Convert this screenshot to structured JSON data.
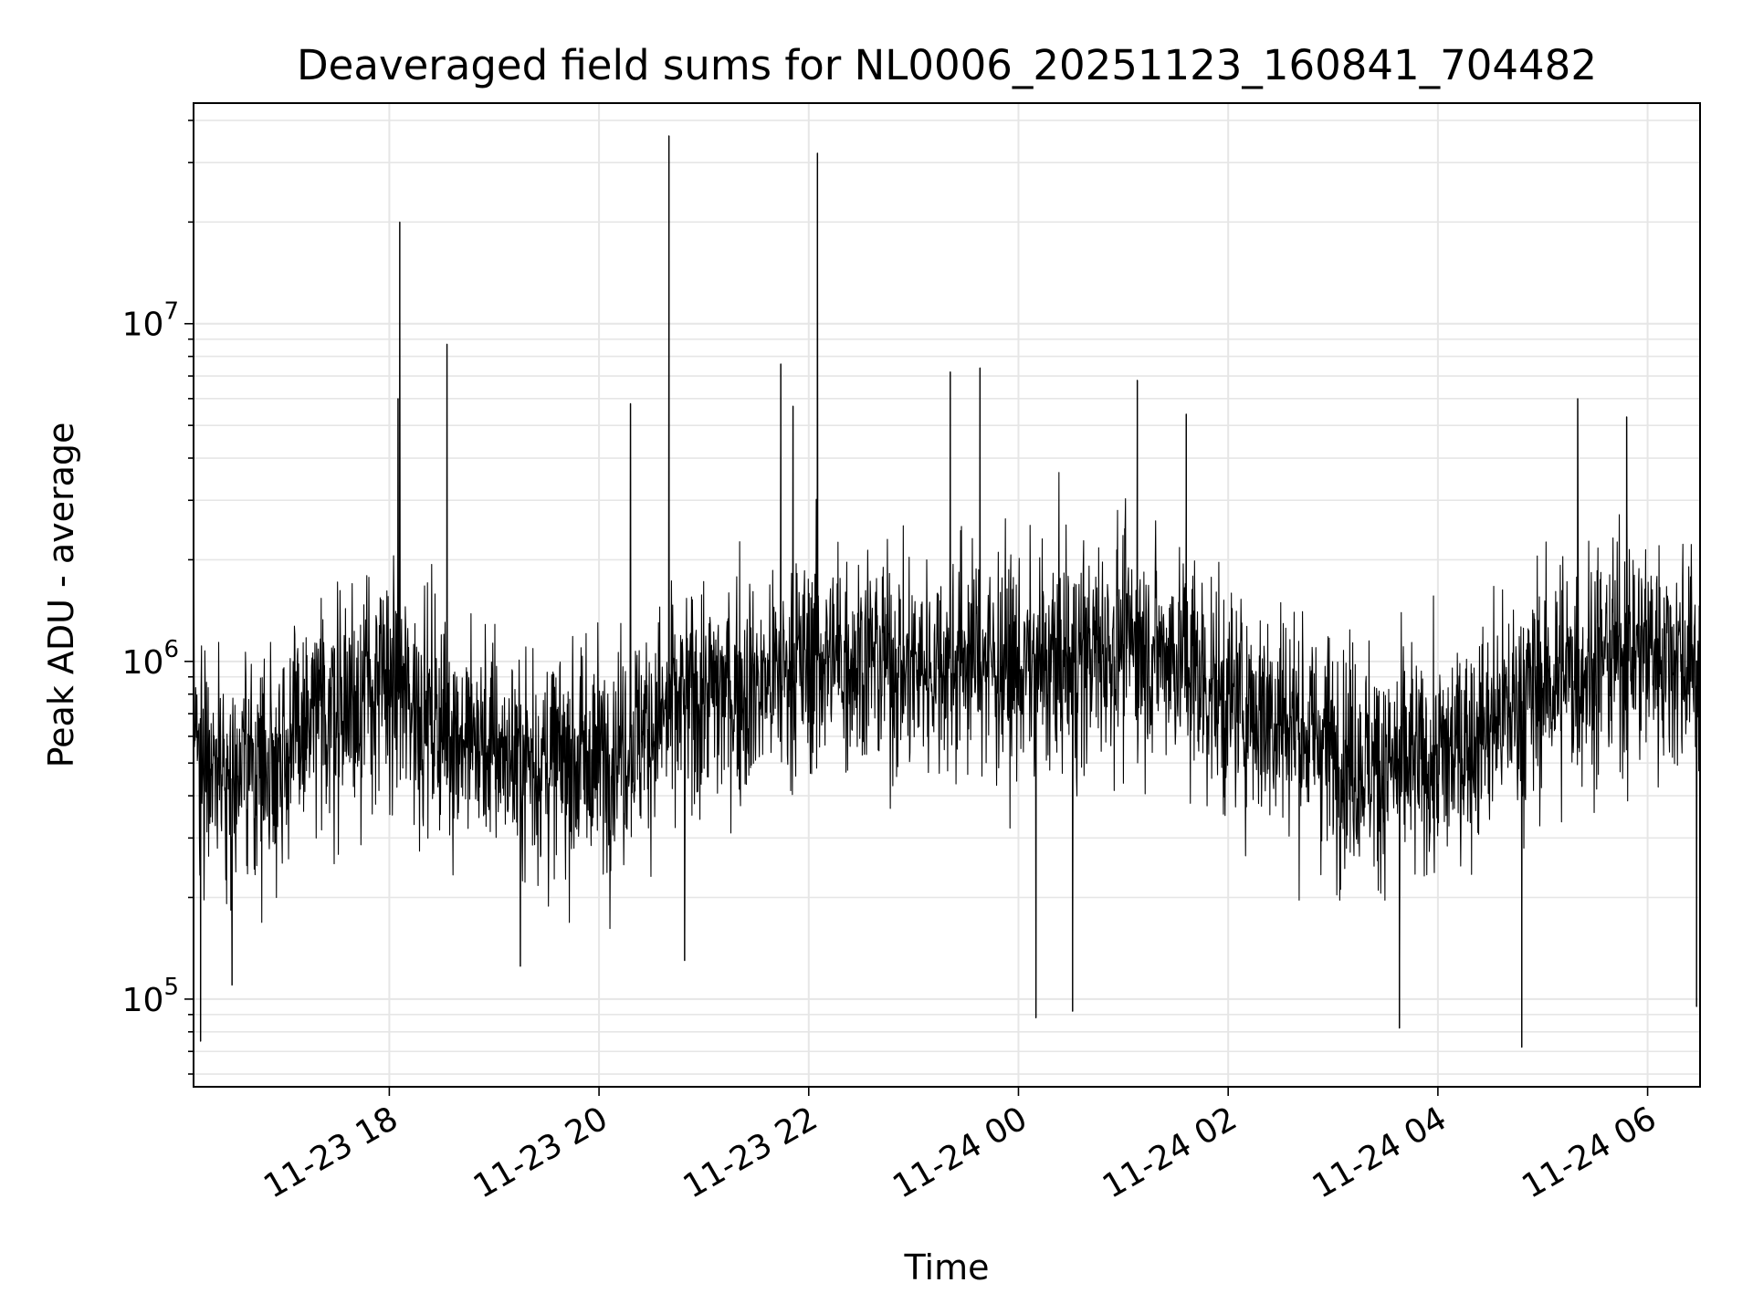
{
  "chart_data": {
    "type": "line",
    "title": "Deaveraged field sums for NL0006_20251123_160841_704482",
    "xlabel": "Time",
    "ylabel": "Peak ADU - average",
    "yscale": "log",
    "xlim": [
      "2025-11-23 16:08",
      "2025-11-24 06:30"
    ],
    "ylim": [
      55000,
      45000000
    ],
    "grid": true,
    "line_color": "#000000",
    "x_ticks": [
      "11-23 18",
      "11-23 20",
      "11-23 22",
      "11-24 00",
      "11-24 02",
      "11-24 04",
      "11-24 06"
    ],
    "y_ticks": [
      {
        "base": "10",
        "exp": "5",
        "value": 100000
      },
      {
        "base": "10",
        "exp": "6",
        "value": 1000000
      },
      {
        "base": "10",
        "exp": "7",
        "value": 10000000
      }
    ],
    "series": [
      {
        "anchors": [
          {
            "x": "2025-11-23 16:08",
            "y": 600000
          },
          {
            "x": "2025-11-23 16:30",
            "y": 450000
          },
          {
            "x": "2025-11-23 17:00",
            "y": 550000
          },
          {
            "x": "2025-11-23 17:30",
            "y": 750000
          },
          {
            "x": "2025-11-23 18:00",
            "y": 850000
          },
          {
            "x": "2025-11-23 18:30",
            "y": 650000
          },
          {
            "x": "2025-11-23 19:00",
            "y": 550000
          },
          {
            "x": "2025-11-23 19:30",
            "y": 500000
          },
          {
            "x": "2025-11-23 20:00",
            "y": 520000
          },
          {
            "x": "2025-11-23 20:30",
            "y": 650000
          },
          {
            "x": "2025-11-23 21:00",
            "y": 800000
          },
          {
            "x": "2025-11-23 21:30",
            "y": 850000
          },
          {
            "x": "2025-11-23 22:00",
            "y": 1000000
          },
          {
            "x": "2025-11-23 22:30",
            "y": 1050000
          },
          {
            "x": "2025-11-23 23:00",
            "y": 950000
          },
          {
            "x": "2025-11-23 23:30",
            "y": 1050000
          },
          {
            "x": "2025-11-24 00:00",
            "y": 950000
          },
          {
            "x": "2025-11-24 00:30",
            "y": 1000000
          },
          {
            "x": "2025-11-24 01:00",
            "y": 1150000
          },
          {
            "x": "2025-11-24 01:30",
            "y": 1050000
          },
          {
            "x": "2025-11-24 02:00",
            "y": 750000
          },
          {
            "x": "2025-11-24 02:30",
            "y": 700000
          },
          {
            "x": "2025-11-24 03:00",
            "y": 550000
          },
          {
            "x": "2025-11-24 03:30",
            "y": 480000
          },
          {
            "x": "2025-11-24 04:00",
            "y": 500000
          },
          {
            "x": "2025-11-24 04:30",
            "y": 650000
          },
          {
            "x": "2025-11-24 05:00",
            "y": 850000
          },
          {
            "x": "2025-11-24 05:30",
            "y": 1000000
          },
          {
            "x": "2025-11-24 06:00",
            "y": 1100000
          },
          {
            "x": "2025-11-24 06:30",
            "y": 1000000
          }
        ],
        "spikes": [
          {
            "x": "2025-11-23 16:12",
            "y": 75000
          },
          {
            "x": "2025-11-23 16:30",
            "y": 110000
          },
          {
            "x": "2025-11-23 18:05",
            "y": 6000000
          },
          {
            "x": "2025-11-23 18:06",
            "y": 20000000
          },
          {
            "x": "2025-11-23 18:33",
            "y": 8700000
          },
          {
            "x": "2025-11-23 19:15",
            "y": 125000
          },
          {
            "x": "2025-11-23 20:18",
            "y": 5800000
          },
          {
            "x": "2025-11-23 20:40",
            "y": 36000000
          },
          {
            "x": "2025-11-23 20:49",
            "y": 130000
          },
          {
            "x": "2025-11-23 21:44",
            "y": 7600000
          },
          {
            "x": "2025-11-23 21:51",
            "y": 5700000
          },
          {
            "x": "2025-11-23 22:05",
            "y": 32000000
          },
          {
            "x": "2025-11-23 23:21",
            "y": 7200000
          },
          {
            "x": "2025-11-23 23:38",
            "y": 7400000
          },
          {
            "x": "2025-11-24 00:10",
            "y": 88000
          },
          {
            "x": "2025-11-24 00:31",
            "y": 92000
          },
          {
            "x": "2025-11-24 01:08",
            "y": 6800000
          },
          {
            "x": "2025-11-24 01:36",
            "y": 5400000
          },
          {
            "x": "2025-11-24 03:38",
            "y": 82000
          },
          {
            "x": "2025-11-24 04:48",
            "y": 72000
          },
          {
            "x": "2025-11-24 05:20",
            "y": 6000000
          },
          {
            "x": "2025-11-24 05:48",
            "y": 5300000
          },
          {
            "x": "2025-11-24 06:28",
            "y": 95000
          }
        ],
        "spread_decades": 0.3
      }
    ]
  }
}
